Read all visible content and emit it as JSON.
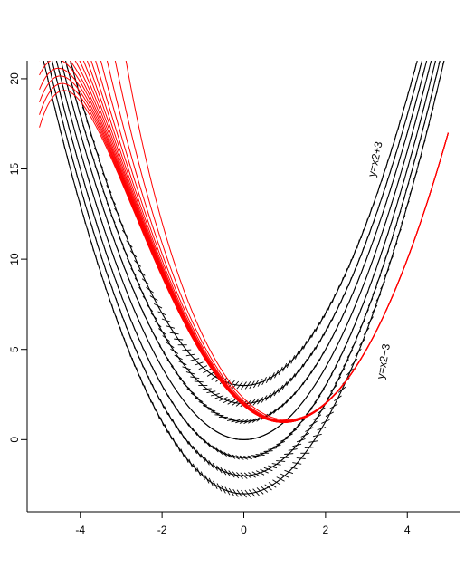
{
  "chart_data": {
    "type": "line",
    "title": "",
    "xlabel": "",
    "ylabel": "",
    "xlim": [
      -5.3,
      5.3
    ],
    "ylim": [
      -4,
      21
    ],
    "x_ticks": [
      -4,
      -2,
      0,
      2,
      4
    ],
    "y_ticks": [
      0,
      5,
      10,
      15,
      20
    ],
    "x_tick_labels": [
      "-4",
      "-2",
      "0",
      "2",
      "4"
    ],
    "y_tick_labels": [
      "0",
      "5",
      "10",
      "15",
      "20"
    ],
    "grid": false,
    "colors": {
      "solution_curves": "#ff0000",
      "parabolas": "#000000"
    },
    "series": [
      {
        "kind": "parabola_with_field",
        "c": 3,
        "formula": "y = x^2 + c"
      },
      {
        "kind": "parabola_with_field",
        "c": 2,
        "formula": "y = x^2 + c"
      },
      {
        "kind": "parabola_with_field",
        "c": 1,
        "formula": "y = x^2 + c"
      },
      {
        "kind": "parabola_with_field",
        "c": 0,
        "formula": "y = x^2 + c"
      },
      {
        "kind": "parabola_with_field",
        "c": -1,
        "formula": "y = x^2 + c"
      },
      {
        "kind": "parabola_with_field",
        "c": -2,
        "formula": "y = x^2 + c"
      },
      {
        "kind": "parabola_with_field",
        "c": -3,
        "formula": "y = x^2 + c"
      },
      {
        "kind": "solution",
        "y0_at_x_minus5": 17.3
      },
      {
        "kind": "solution",
        "y0_at_x_minus5": 18.0
      },
      {
        "kind": "solution",
        "y0_at_x_minus5": 18.7
      },
      {
        "kind": "solution",
        "y0_at_x_minus5": 19.4
      },
      {
        "kind": "solution",
        "y0_at_x_minus5": 20.2
      },
      {
        "kind": "solution",
        "y0_at_x_minus5": 21.0
      },
      {
        "kind": "solution",
        "y0_at_x_minus5": 22.0
      },
      {
        "kind": "solution",
        "y0_at_x_minus5": 23.2
      },
      {
        "kind": "solution",
        "y0_at_x_minus5": 24.6
      },
      {
        "kind": "solution",
        "y0_at_x_minus5": 26.3
      },
      {
        "kind": "solution",
        "y0_at_x_minus5": 28.5
      },
      {
        "kind": "solution",
        "y0_at_x_minus5": 31.5
      },
      {
        "kind": "solution",
        "y0_at_x_minus5": 36.0
      },
      {
        "kind": "solution",
        "y0_at_x_minus5": 43.0
      },
      {
        "kind": "solution",
        "y0_at_x_minus5": 55.0
      },
      {
        "kind": "solution",
        "y0_at_x_minus5": 78.0
      }
    ],
    "annotations": [
      {
        "text": "y=x2+3",
        "x": 3.3,
        "y": 15.5,
        "angle": -78
      },
      {
        "text": "y=x2−3",
        "x": 3.5,
        "y": 4.3,
        "angle": -80
      }
    ]
  }
}
